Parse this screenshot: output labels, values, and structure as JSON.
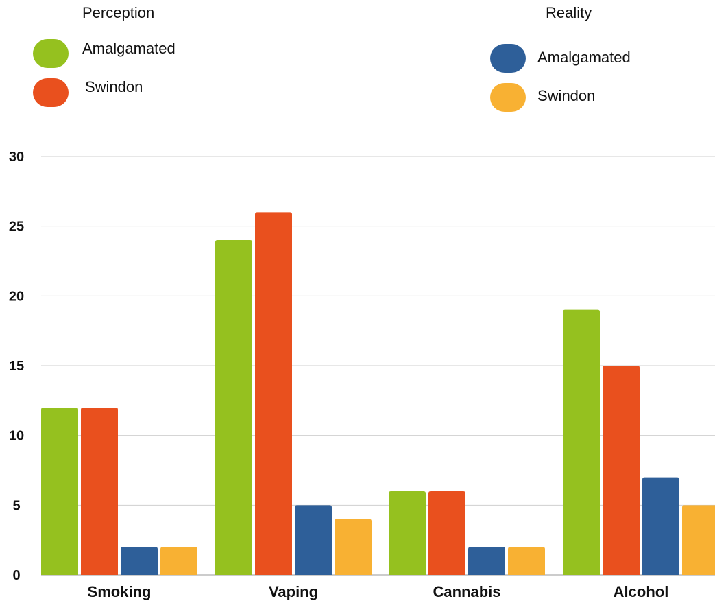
{
  "legend": {
    "perception": {
      "title": "Perception",
      "items": [
        {
          "label": "Amalgamated",
          "color": "#95c11f"
        },
        {
          "label": "Swindon",
          "color": "#e9501e"
        }
      ]
    },
    "reality": {
      "title": "Reality",
      "items": [
        {
          "label": "Amalgamated",
          "color": "#2e5f99"
        },
        {
          "label": "Swindon",
          "color": "#f8b133"
        }
      ]
    }
  },
  "chart_data": {
    "type": "bar",
    "title": "",
    "xlabel": "",
    "ylabel": "",
    "categories": [
      "Smoking",
      "Vaping",
      "Cannabis",
      "Alcohol"
    ],
    "ylim": [
      0,
      30
    ],
    "yticks": [
      0,
      5,
      10,
      15,
      20,
      25,
      30
    ],
    "grid": true,
    "legend_position": "top",
    "series": [
      {
        "name": "Perception Amalgamated",
        "color": "#95c11f",
        "values": [
          12,
          24,
          6,
          19
        ]
      },
      {
        "name": "Perception Swindon",
        "color": "#e9501e",
        "values": [
          12,
          26,
          6,
          15
        ]
      },
      {
        "name": "Reality Amalgamated",
        "color": "#2e5f99",
        "values": [
          2,
          5,
          2,
          7
        ]
      },
      {
        "name": "Reality Swindon",
        "color": "#f8b133",
        "values": [
          2,
          4,
          2,
          5
        ]
      }
    ]
  }
}
